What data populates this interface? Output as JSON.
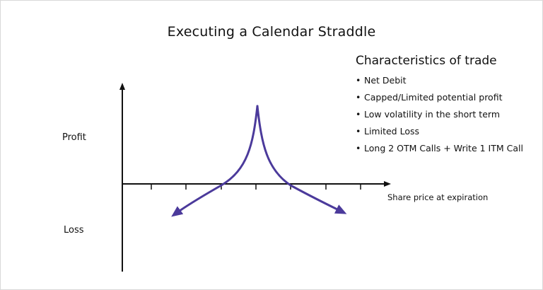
{
  "title": "Executing a Calendar Straddle",
  "characteristics": {
    "heading": "Characteristics of trade",
    "items": [
      "Net Debit",
      "Capped/Limited potential profit",
      "Low volatility in the short term",
      "Limited Loss",
      "Long 2 OTM Calls + Write 1 ITM Call"
    ]
  },
  "axes": {
    "profit_label": "Profit",
    "loss_label": "Loss",
    "x_label": "Share price at expiration"
  },
  "colors": {
    "curve": "#4b3a9b",
    "axis": "#111111"
  }
}
